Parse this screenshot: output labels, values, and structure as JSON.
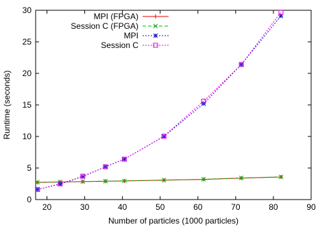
{
  "chart_data": {
    "type": "line",
    "title": "",
    "xlabel": "Number of particles (1000 particles)",
    "ylabel": "Runtime (seconds)",
    "xlim": [
      17,
      90
    ],
    "ylim": [
      0,
      30
    ],
    "x_ticks": [
      20,
      30,
      40,
      50,
      60,
      70,
      80,
      90
    ],
    "y_ticks": [
      0,
      5,
      10,
      15,
      20,
      25,
      30
    ],
    "legend_position": "top-left",
    "grid": false,
    "series": [
      {
        "name": "MPI (FPGA)",
        "color": "#e00000",
        "marker": "plus",
        "dash": "solid",
        "x": [
          17.5,
          23.5,
          29.5,
          35.5,
          40.5,
          51,
          61.5,
          71.5,
          82
        ],
        "y": [
          2.72,
          2.78,
          2.84,
          2.9,
          2.95,
          3.08,
          3.2,
          3.4,
          3.58
        ]
      },
      {
        "name": "Session C (FPGA)",
        "color": "#00b000",
        "marker": "cross",
        "dash": "dashed",
        "x": [
          17.5,
          23.5,
          29.5,
          35.5,
          40.5,
          51,
          61.5,
          71.5,
          82
        ],
        "y": [
          2.75,
          2.8,
          2.86,
          2.92,
          2.97,
          3.1,
          3.22,
          3.42,
          3.6
        ]
      },
      {
        "name": "MPI",
        "color": "#1010d0",
        "marker": "asterisk",
        "dash": "dotted",
        "x": [
          17.5,
          23.5,
          29.5,
          35.5,
          40.5,
          51,
          61.5,
          71.5,
          82
        ],
        "y": [
          1.6,
          2.45,
          3.65,
          5.2,
          6.4,
          10.0,
          15.2,
          21.4,
          29.1
        ]
      },
      {
        "name": "Session C",
        "color": "#e000e0",
        "marker": "square",
        "dash": "dotted",
        "x": [
          17.5,
          23.5,
          29.5,
          35.5,
          40.5,
          51,
          61.5,
          71.5,
          82
        ],
        "y": [
          1.6,
          2.5,
          3.7,
          5.2,
          6.4,
          10.05,
          15.6,
          21.4,
          29.7
        ]
      }
    ]
  }
}
